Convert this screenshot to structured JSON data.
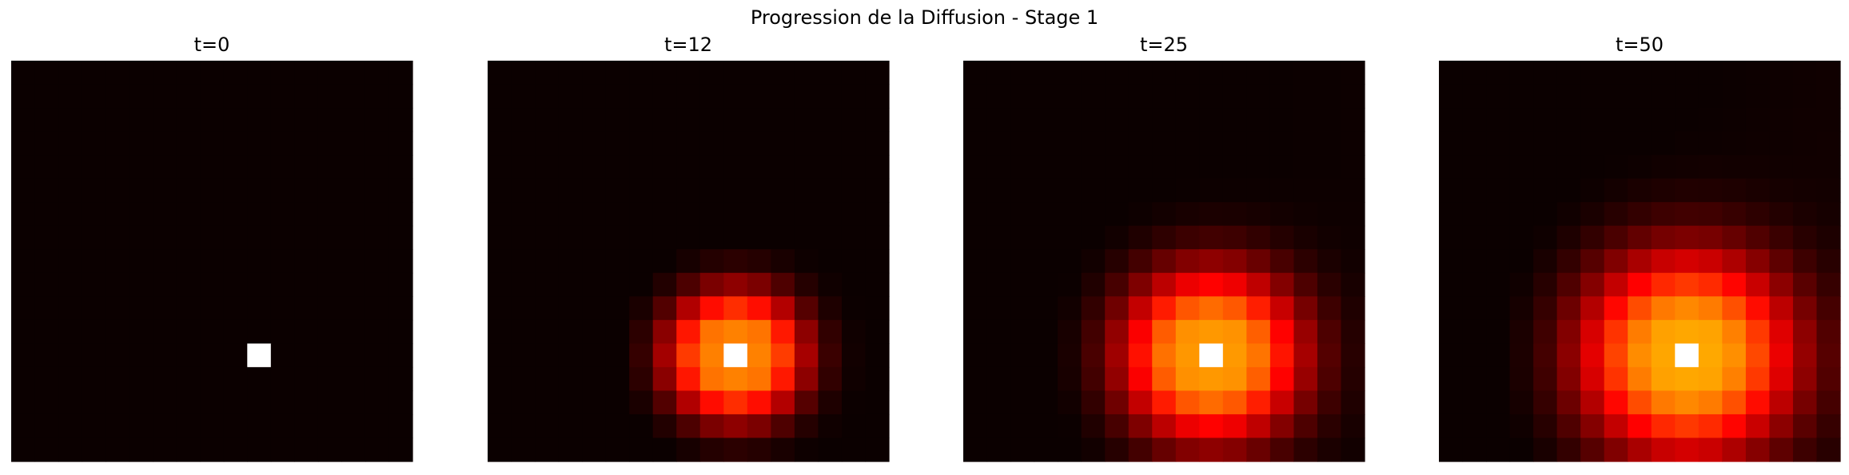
{
  "chart_data": {
    "type": "heatmap",
    "title": "Progression de la Diffusion - Stage 1",
    "colormap": "hot",
    "grid": false,
    "axes_visible": false,
    "vlim": [
      0,
      1
    ],
    "grid_size": 17,
    "source": [
      12,
      10
    ],
    "panels": [
      {
        "title": "t=0",
        "spread": 0.0,
        "peak_ring": 0.0,
        "floor": 0.0,
        "fill": 0.0
      },
      {
        "title": "t=12",
        "spread": 1.8,
        "peak_ring": 0.55,
        "floor": 0.012,
        "fill": 0.18
      },
      {
        "title": "t=25",
        "spread": 2.6,
        "peak_ring": 0.58,
        "floor": 0.02,
        "fill": 0.25
      },
      {
        "title": "t=50",
        "spread": 3.2,
        "peak_ring": 0.6,
        "floor": 0.025,
        "fill": 0.3
      }
    ]
  }
}
